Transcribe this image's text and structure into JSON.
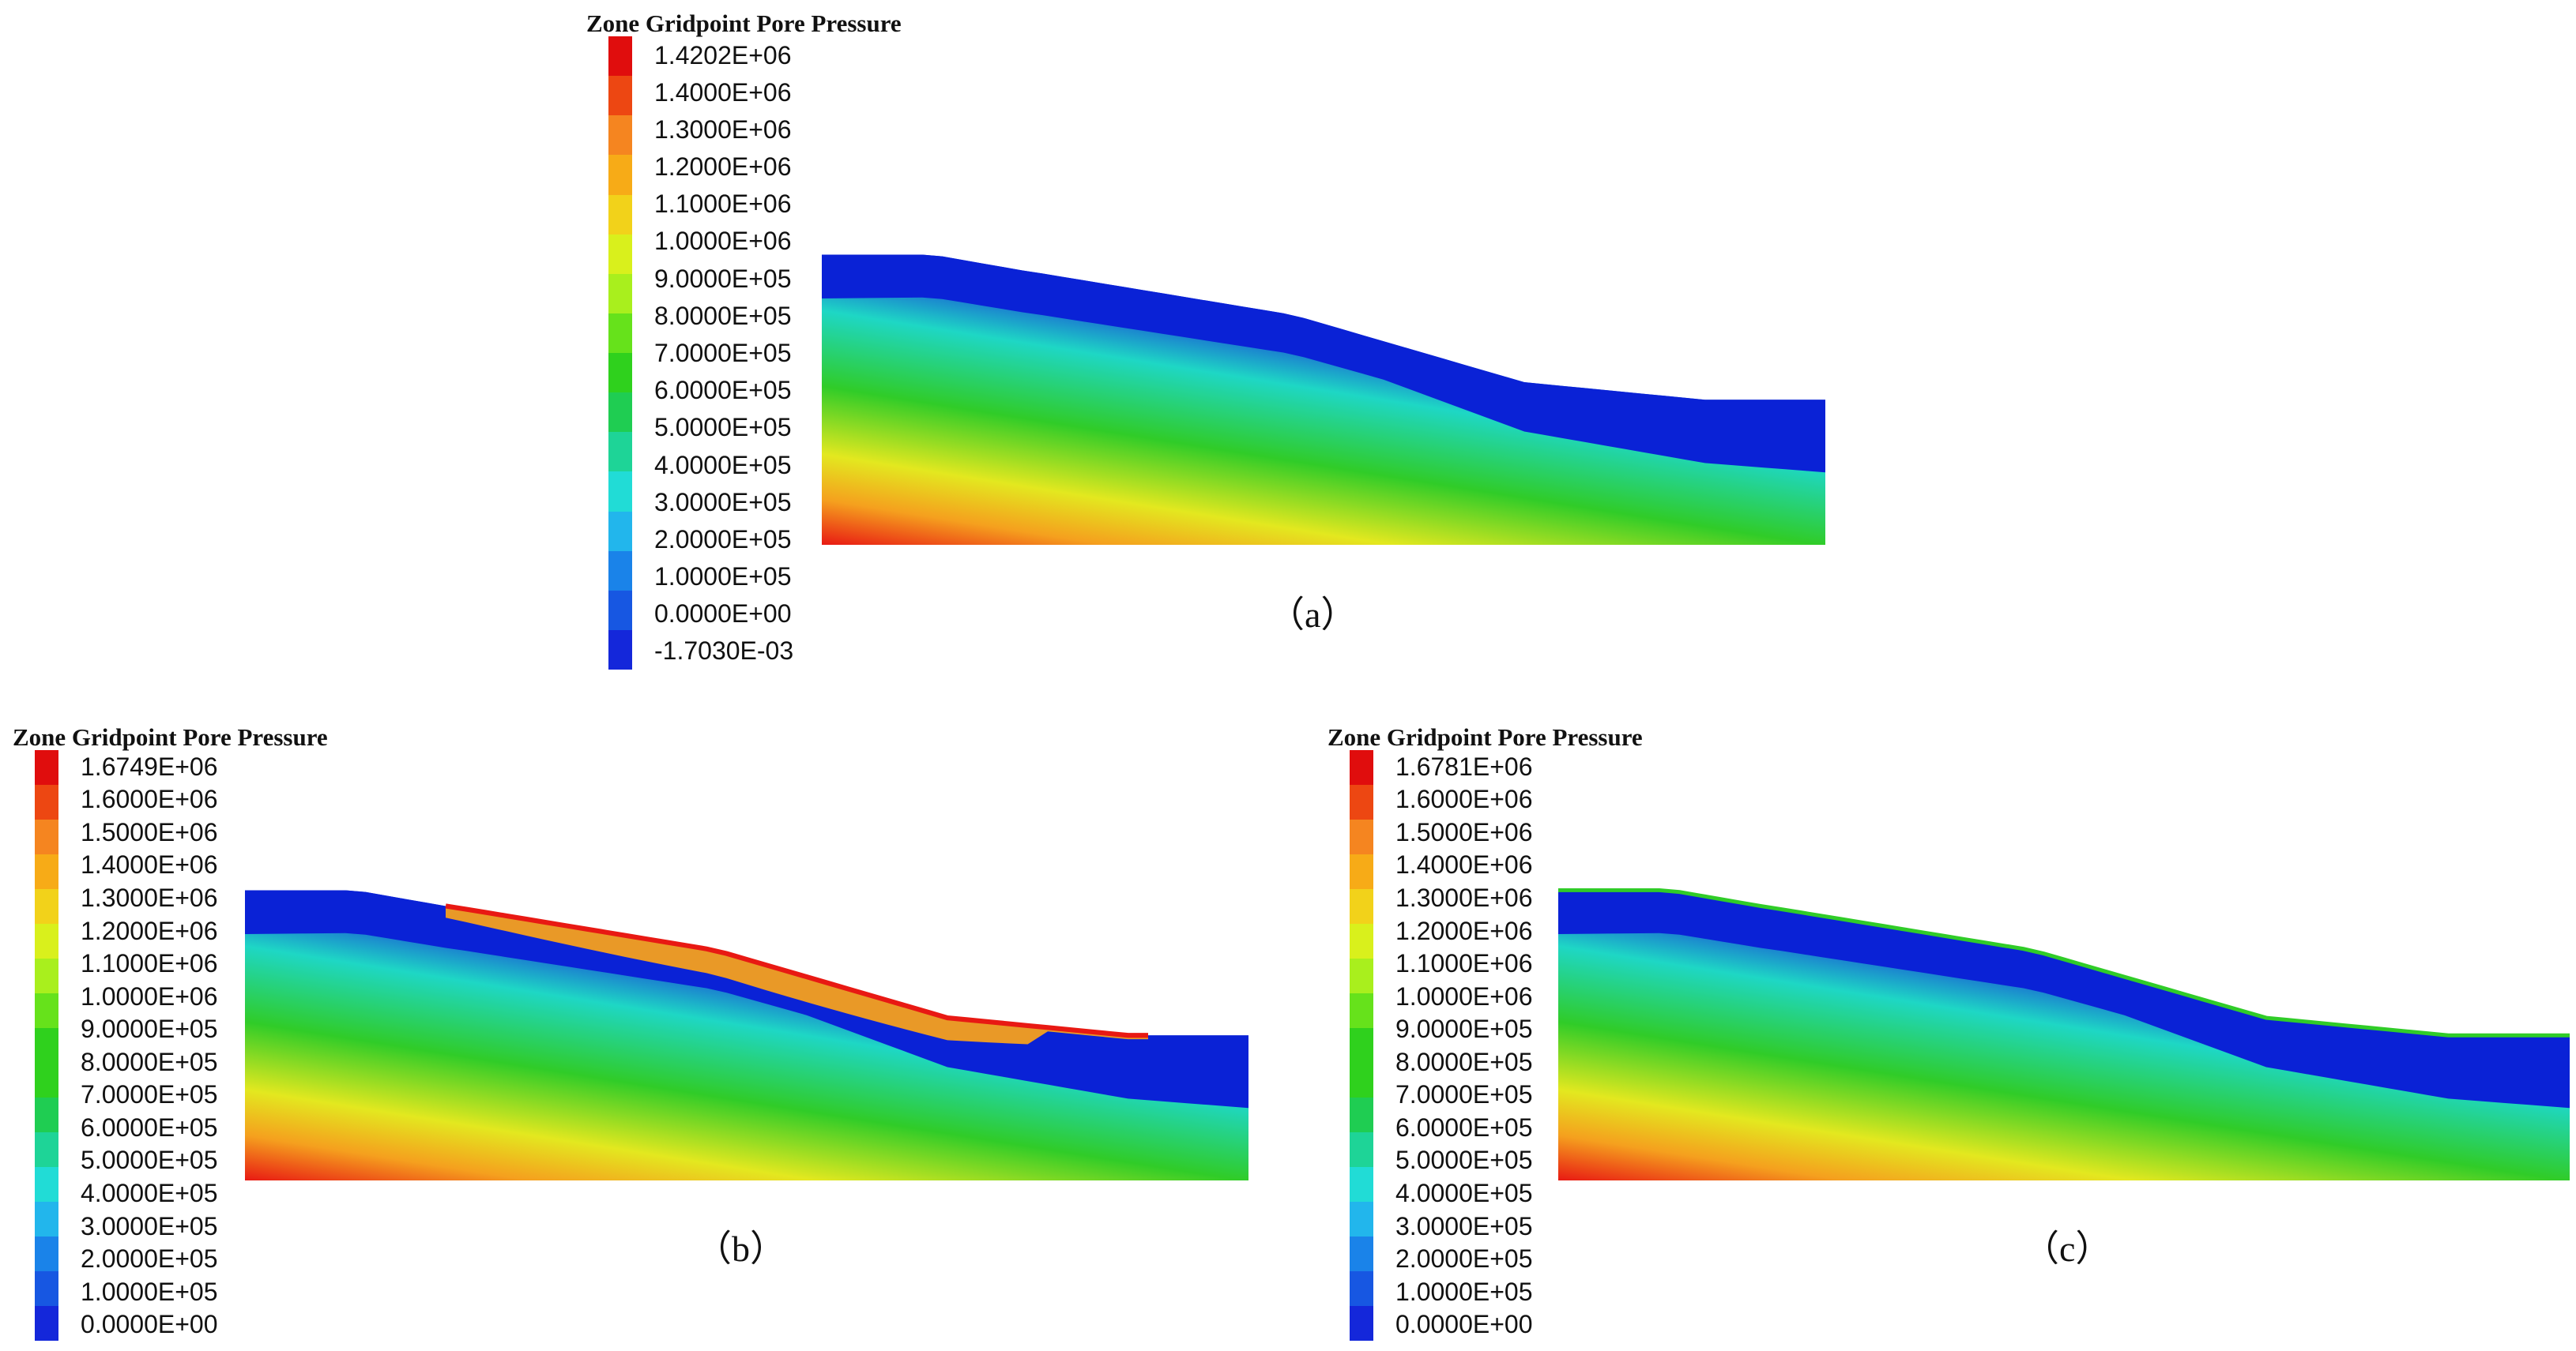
{
  "colors": {
    "colorbar_top_to_bottom": [
      "#e00d0d",
      "#ed4712",
      "#f58520",
      "#f7ab17",
      "#f2d21a",
      "#d9f01c",
      "#a9ef1d",
      "#66e21b",
      "#2fd11d",
      "#1fcd52",
      "#1ed497",
      "#21dcd6",
      "#22b6ec",
      "#1a83e9",
      "#1757e2",
      "#1427da"
    ],
    "hot": "#e81913",
    "orange": "#f5a01e",
    "yellow": "#e3e81f",
    "green": "#30cc28",
    "cyan": "#1ed7c5",
    "blue": "#1837d8",
    "deep_blue": "#0a22d6"
  },
  "panels": [
    {
      "id": "a",
      "legend_title": "Zone Gridpoint Pore Pressure",
      "ticks": [
        "1.4202E+06",
        "1.4000E+06",
        "1.3000E+06",
        "1.2000E+06",
        "1.1000E+06",
        "1.0000E+06",
        "9.0000E+05",
        "8.0000E+05",
        "7.0000E+05",
        "6.0000E+05",
        "5.0000E+05",
        "4.0000E+05",
        "3.0000E+05",
        "2.0000E+05",
        "1.0000E+05",
        "0.0000E+00",
        "-1.7030E-03"
      ],
      "caption": "（a）",
      "highlight": "none"
    },
    {
      "id": "b",
      "legend_title": "Zone Gridpoint Pore Pressure",
      "ticks": [
        "1.6749E+06",
        "1.6000E+06",
        "1.5000E+06",
        "1.4000E+06",
        "1.3000E+06",
        "1.2000E+06",
        "1.1000E+06",
        "1.0000E+06",
        "9.0000E+05",
        "8.0000E+05",
        "7.0000E+05",
        "6.0000E+05",
        "5.0000E+05",
        "4.0000E+05",
        "3.0000E+05",
        "2.0000E+05",
        "1.0000E+05",
        "0.0000E+00"
      ],
      "caption": "（b）",
      "highlight": "band"
    },
    {
      "id": "c",
      "legend_title": "Zone Gridpoint Pore Pressure",
      "ticks": [
        "1.6781E+06",
        "1.6000E+06",
        "1.5000E+06",
        "1.4000E+06",
        "1.3000E+06",
        "1.2000E+06",
        "1.1000E+06",
        "1.0000E+06",
        "9.0000E+05",
        "8.0000E+05",
        "7.0000E+05",
        "6.0000E+05",
        "5.0000E+05",
        "4.0000E+05",
        "3.0000E+05",
        "2.0000E+05",
        "1.0000E+05",
        "0.0000E+00"
      ],
      "caption": "（c）",
      "highlight": "rim"
    }
  ]
}
